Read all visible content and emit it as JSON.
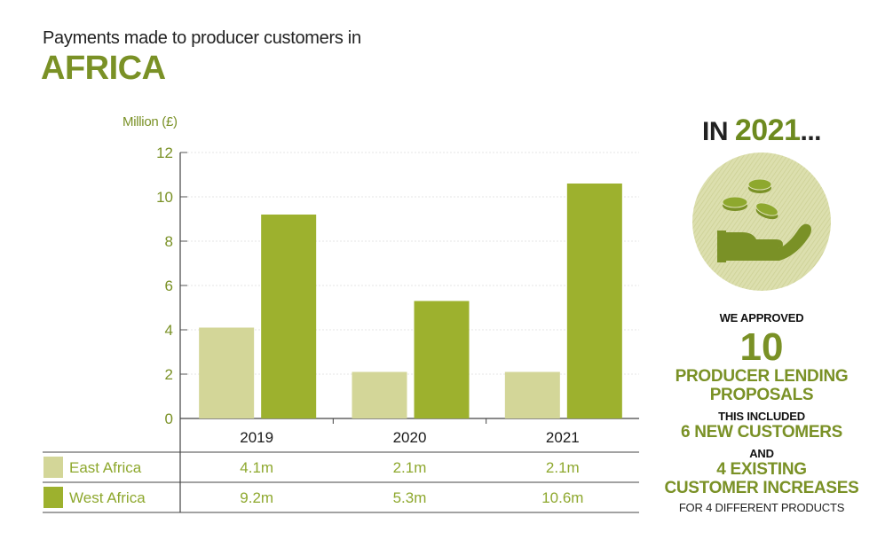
{
  "header": {
    "subtitle": "Payments made to producer customers in",
    "title": "AFRICA"
  },
  "chart_data": {
    "type": "bar",
    "ylabel": "Million (£)",
    "ylim": [
      0,
      12
    ],
    "yticks": [
      0,
      2,
      4,
      6,
      8,
      10,
      12
    ],
    "categories": [
      "2019",
      "2020",
      "2021"
    ],
    "series": [
      {
        "name": "East Africa",
        "values": [
          4.1,
          2.1,
          2.1
        ],
        "labels": [
          "4.1m",
          "2.1m",
          "2.1m"
        ],
        "color": "#d3d698"
      },
      {
        "name": "West Africa",
        "values": [
          9.2,
          5.3,
          10.6
        ],
        "labels": [
          "9.2m",
          "5.3m",
          "10.6m"
        ],
        "color": "#9db12e"
      }
    ],
    "grid": true
  },
  "panel": {
    "heading_prefix": "IN",
    "heading_year": "2021",
    "heading_suffix": "...",
    "line1": "WE APPROVED",
    "number": "10",
    "line2a": "PRODUCER LENDING",
    "line2b": "PROPOSALS",
    "line3": "THIS INCLUDED",
    "line4": "6 NEW CUSTOMERS",
    "line5": "AND",
    "line6a": "4 EXISTING",
    "line6b": "CUSTOMER INCREASES",
    "line7": "FOR 4 DIFFERENT PRODUCTS",
    "icon": "hand-coins-icon",
    "accent": "#7a9126",
    "circle_color": "#dfe1b5"
  }
}
